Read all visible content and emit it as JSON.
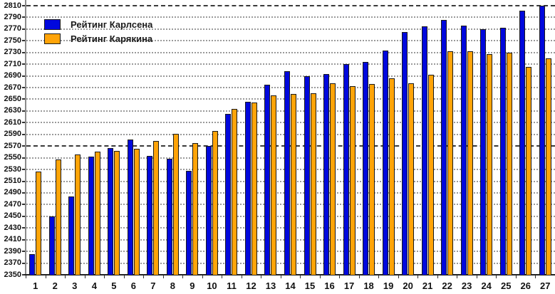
{
  "chart_data": {
    "type": "bar",
    "title": "",
    "xlabel": "",
    "ylabel": "",
    "categories": [
      "1",
      "2",
      "3",
      "4",
      "5",
      "6",
      "7",
      "8",
      "9",
      "10",
      "11",
      "12",
      "13",
      "14",
      "15",
      "16",
      "17",
      "18",
      "19",
      "20",
      "21",
      "22",
      "23",
      "24",
      "25",
      "26",
      "27"
    ],
    "series": [
      {
        "name": "Рейтинг Карлсена",
        "color": "#0008dd",
        "values": [
          2385,
          2450,
          2484,
          2552,
          2567,
          2581,
          2553,
          2548,
          2528,
          2570,
          2625,
          2646,
          2675,
          2698,
          2690,
          2693,
          2710,
          2714,
          2733,
          2765,
          2775,
          2786,
          2776,
          2770,
          2772,
          2801,
          2810
        ]
      },
      {
        "name": "Рейтинг Карякина",
        "color": "#ffa408",
        "values": [
          2527,
          2547,
          2556,
          2560,
          2562,
          2566,
          2579,
          2591,
          2575,
          2596,
          2633,
          2644,
          2657,
          2659,
          2660,
          2677,
          2672,
          2676,
          2686,
          2677,
          2692,
          2732,
          2732,
          2727,
          2730,
          2705,
          2720
        ]
      }
    ],
    "ylim": [
      2350,
      2810
    ],
    "ytick_step": 20,
    "yticks": [
      2350,
      2370,
      2390,
      2410,
      2430,
      2450,
      2470,
      2490,
      2510,
      2530,
      2550,
      2570,
      2590,
      2610,
      2630,
      2650,
      2670,
      2690,
      2710,
      2730,
      2750,
      2770,
      2790,
      2810
    ],
    "emphasized_gridlines": [
      2570,
      2810
    ],
    "grid": "horizontal-dotted",
    "legend_position": "top-left"
  }
}
